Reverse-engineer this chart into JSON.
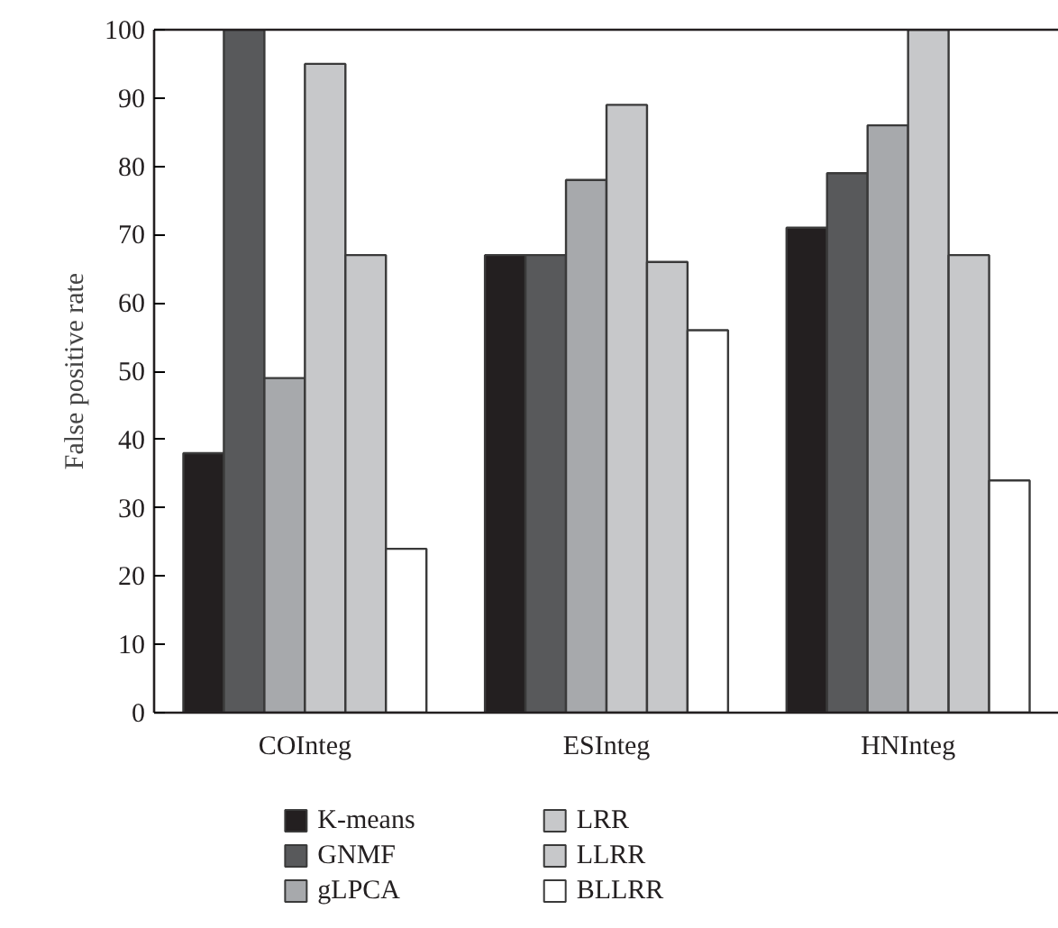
{
  "chart_data": {
    "type": "bar",
    "ylabel": "False positive rate",
    "categories": [
      "COInteg",
      "ESInteg",
      "HNInteg"
    ],
    "series": [
      {
        "name": "K-means",
        "color": "#231f20",
        "values": [
          38,
          67,
          71
        ]
      },
      {
        "name": "GNMF",
        "color": "#58595b",
        "values": [
          100,
          67,
          79
        ]
      },
      {
        "name": "gLPCA",
        "color": "#a7a9ac",
        "values": [
          49,
          78,
          86
        ]
      },
      {
        "name": "LRR",
        "color": "#c7c8ca",
        "values": [
          95,
          89,
          100
        ]
      },
      {
        "name": "LLRR",
        "color": "#c7c8ca",
        "values": [
          67,
          66,
          67
        ]
      },
      {
        "name": "BLLRR",
        "color": "#ffffff",
        "values": [
          24,
          56,
          34
        ]
      }
    ],
    "ylim": [
      0,
      100
    ],
    "yticks": [
      0,
      10,
      20,
      30,
      40,
      50,
      60,
      70,
      80,
      90,
      100
    ],
    "grid": false,
    "legend": "bottom"
  }
}
